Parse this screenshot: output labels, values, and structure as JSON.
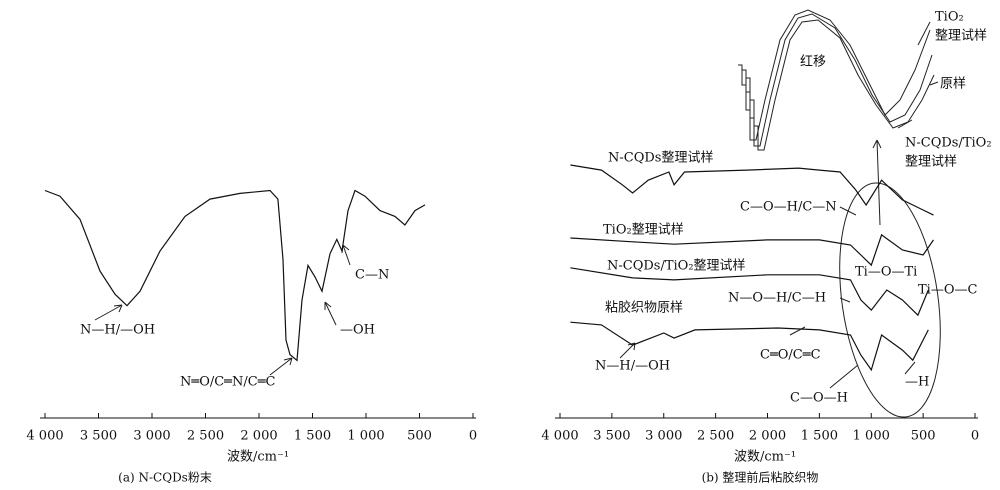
{
  "chart_data": [
    {
      "type": "line",
      "caption": "(a) N-CQDs粉末",
      "xlabel": "波数/cm⁻¹",
      "xlim": [
        4000,
        0
      ],
      "ylim": [
        0,
        100
      ],
      "xticks": [
        {
          "value": 4000,
          "label": "4 000"
        },
        {
          "value": 3500,
          "label": "3 500"
        },
        {
          "value": 3000,
          "label": "3 000"
        },
        {
          "value": 2500,
          "label": "2 500"
        },
        {
          "value": 2000,
          "label": "2 000"
        },
        {
          "value": 1500,
          "label": "1 500"
        },
        {
          "value": 1000,
          "label": "1 000"
        },
        500,
        0
      ],
      "series": [
        {
          "color": "#111",
          "x": [
            4000,
            3860,
            3673,
            3486,
            3346,
            3234,
            3112,
            2925,
            2692,
            2458,
            2178,
            1897,
            1823,
            1776,
            1748,
            1710,
            1645,
            1598,
            1542,
            1477,
            1411,
            1336,
            1273,
            1224,
            1168,
            1103,
            1009,
            869,
            729,
            636,
            542,
            449
          ],
          "values": [
            79,
            77,
            69,
            51,
            43,
            39,
            44,
            58,
            70,
            76,
            78,
            79,
            76,
            55,
            27,
            22,
            20,
            41,
            53,
            49,
            44,
            57,
            62,
            58,
            72,
            79,
            77,
            72,
            70,
            67,
            72,
            74
          ]
        }
      ],
      "annotations": [
        "N—H/—OH",
        "N═O/C═N/C═C",
        "—OH",
        "C—N"
      ]
    },
    {
      "type": "line",
      "caption": "(b) 整理前后粘胶织物",
      "xlabel": "波数/cm⁻¹",
      "xlim": [
        4000,
        0
      ],
      "ylim": [
        0,
        100
      ],
      "xticks": [
        {
          "value": 4000,
          "label": "4 000"
        },
        {
          "value": 3500,
          "label": "3 500"
        },
        {
          "value": 3000,
          "label": "3 000"
        },
        {
          "value": 2500,
          "label": "2 500"
        },
        {
          "value": 2000,
          "label": "2 000"
        },
        {
          "value": 1500,
          "label": "1 500"
        },
        {
          "value": 1000,
          "label": "1 000"
        },
        500,
        0
      ],
      "series": [
        {
          "color": "#111",
          "x": [
            3900,
            3600,
            3400,
            3300,
            3150,
            2950,
            2900,
            2800,
            2200,
            1700,
            1500,
            1300,
            1150,
            1050,
            900,
            700,
            500,
            400
          ],
          "values": [
            65.2,
            63.9,
            60.1,
            58,
            61.3,
            63.4,
            60.1,
            63.4,
            63.9,
            64.4,
            63.9,
            63.4,
            58.8,
            54.9,
            61.3,
            56.2,
            53.6,
            52.3
          ]
        },
        {
          "color": "#111",
          "x": [
            3900,
            3300,
            2900,
            2000,
            1500,
            1200,
            1100,
            1000,
            900,
            700,
            500,
            400
          ],
          "values": [
            46.4,
            45.4,
            44.8,
            45.9,
            45.9,
            44.6,
            42,
            39.4,
            47.2,
            43.3,
            42,
            45.9
          ]
        },
        {
          "color": "#111",
          "x": [
            3900,
            3300,
            2900,
            2000,
            1500,
            1200,
            1100,
            1000,
            850,
            700,
            550,
            450
          ],
          "values": [
            38.7,
            36.1,
            35.6,
            36.9,
            36.9,
            35.6,
            30.4,
            27.8,
            33,
            30.4,
            26.5,
            33
          ]
        },
        {
          "color": "#111",
          "x": [
            3900,
            3600,
            3300,
            3000,
            2900,
            2700,
            1900,
            1500,
            1200,
            1100,
            1000,
            900,
            700,
            600,
            450
          ],
          "values": [
            24.7,
            24,
            18.8,
            21.9,
            20.6,
            22.7,
            23.2,
            22.7,
            21.4,
            16.2,
            12.4,
            21.4,
            17.5,
            14.9,
            22.7
          ]
        }
      ],
      "annotations": [
        "N-CQDs整理试样",
        "C—O—H/C—N",
        "TiO₂整理试样",
        "N-CQDs/TiO₂整理试样",
        "Ti—O—Ti",
        "N—O—H/C—H",
        "Ti—O—C",
        "粘胶织物原样",
        "N—H/—OH",
        "C═O/C═C",
        "—H",
        "C—O—H",
        "TiO₂",
        "整理试样",
        "红移",
        "原样",
        "N-CQDs/TiO₂",
        "整理试样"
      ]
    }
  ]
}
